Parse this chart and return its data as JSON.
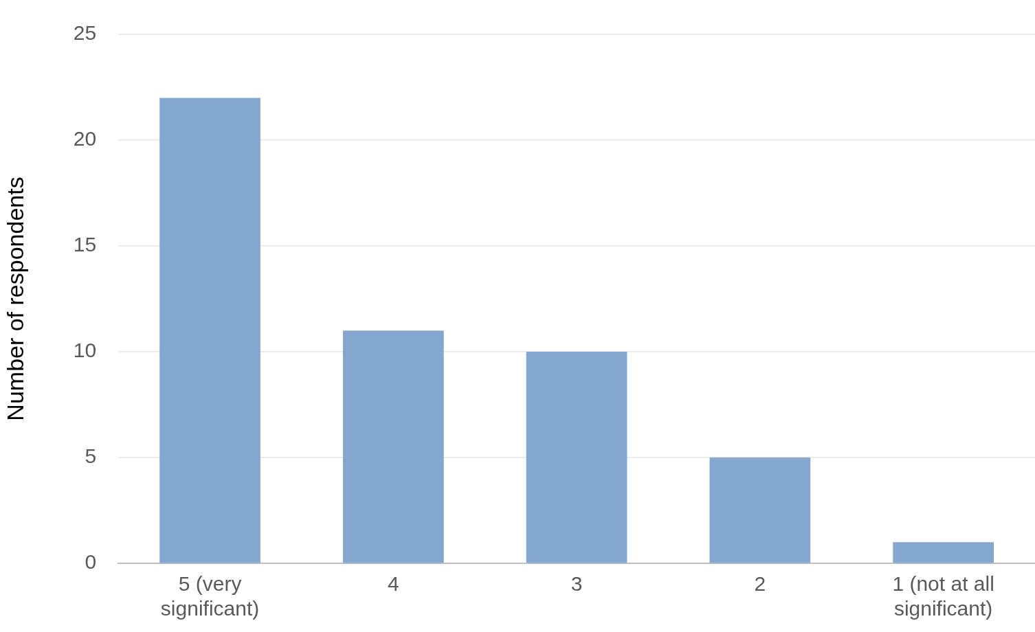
{
  "chart_data": {
    "type": "bar",
    "ylabel": "Number of respondents",
    "categories": [
      "5 (very significant)",
      "4",
      "3",
      "2",
      "1 (not at all significant)"
    ],
    "values": [
      22,
      11,
      10,
      5,
      1
    ],
    "color": "#84a7d0",
    "ylim": [
      0,
      25
    ],
    "yticks": [
      0,
      5,
      10,
      15,
      20,
      25
    ],
    "grid": "y",
    "legend": false
  }
}
